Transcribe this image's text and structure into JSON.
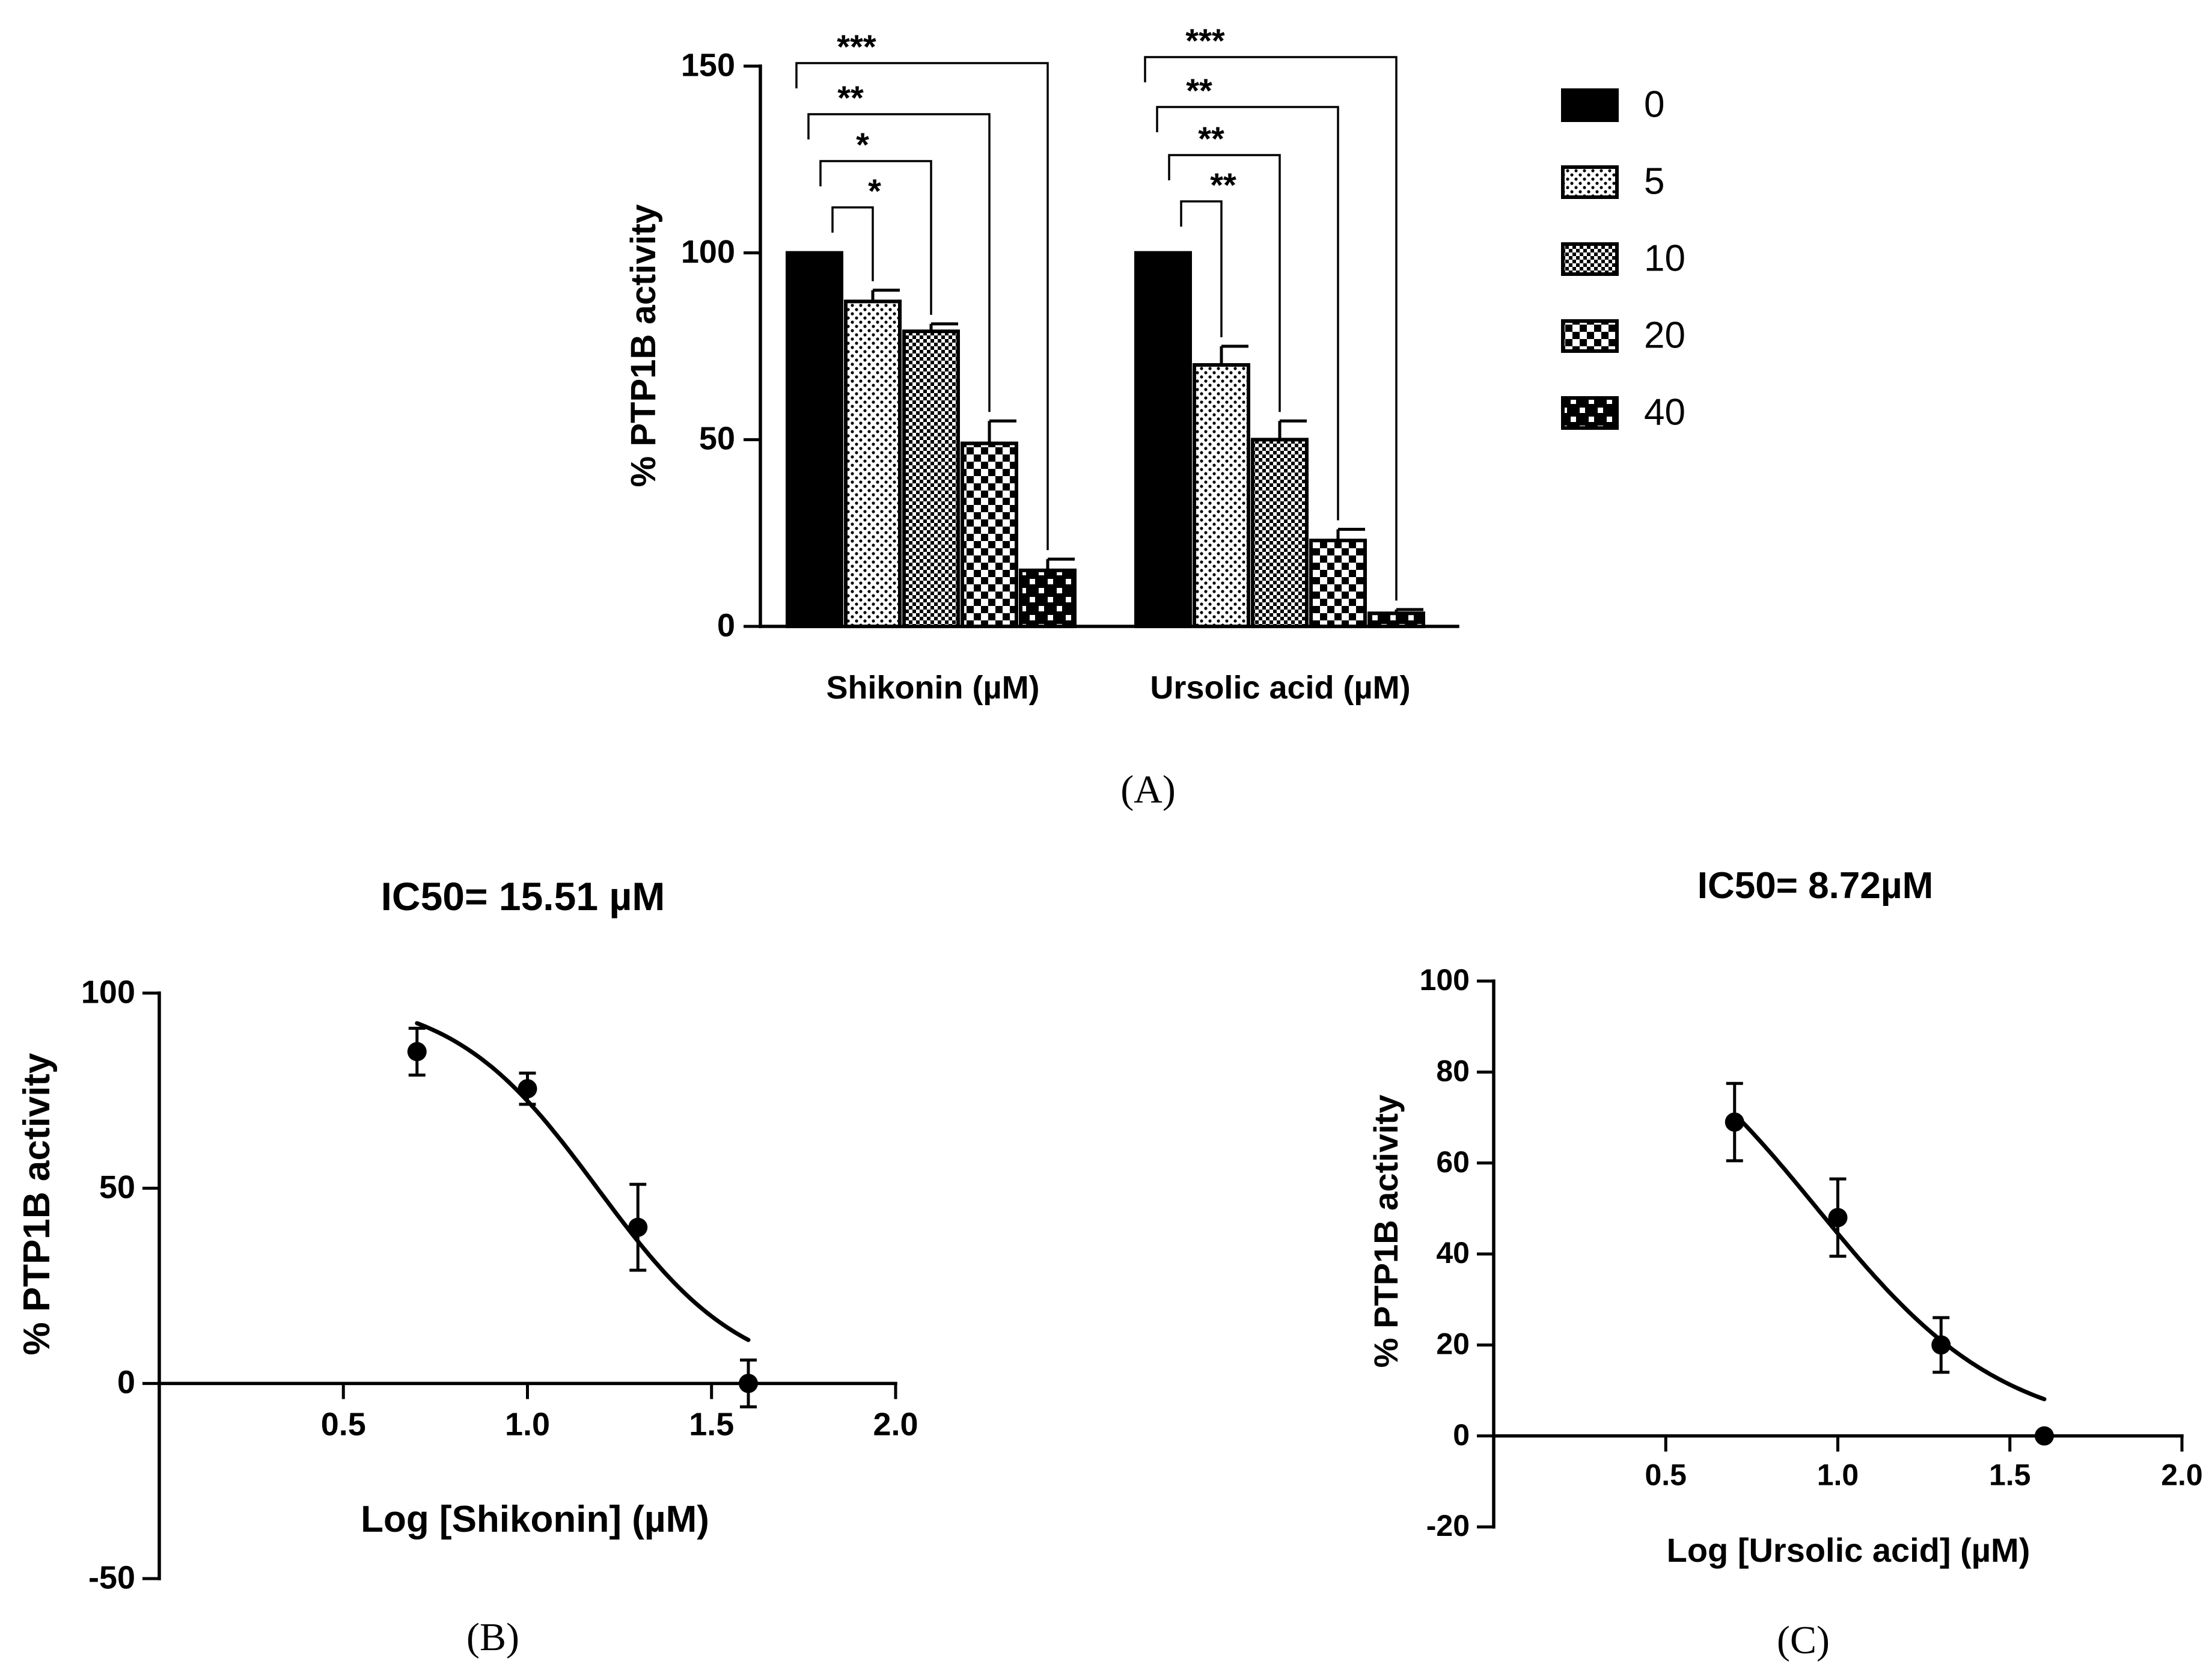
{
  "chart_data": [
    {
      "type": "bar",
      "panel": "A",
      "caption": "(A)",
      "ylabel": "% PTP1B activity",
      "ylim": [
        0,
        150
      ],
      "yticks": [
        0,
        50,
        100,
        150
      ],
      "groups": [
        "Shikonin (µM)",
        "Ursolic acid (µM)"
      ],
      "legend_title": "",
      "series": [
        {
          "name": "0",
          "values": [
            100,
            100
          ],
          "errors": [
            0,
            0
          ],
          "fill": "solid"
        },
        {
          "name": "5",
          "values": [
            87,
            70
          ],
          "errors": [
            3,
            5
          ],
          "fill": "dots"
        },
        {
          "name": "10",
          "values": [
            79,
            50
          ],
          "errors": [
            2,
            5
          ],
          "fill": "fine-check"
        },
        {
          "name": "20",
          "values": [
            49,
            23
          ],
          "errors": [
            6,
            3
          ],
          "fill": "check"
        },
        {
          "name": "40",
          "values": [
            15,
            3.5
          ],
          "errors": [
            3,
            1
          ],
          "fill": "coarse-check"
        }
      ],
      "significance": [
        [
          {
            "vs": "5",
            "label": "*"
          },
          {
            "vs": "10",
            "label": "*"
          },
          {
            "vs": "20",
            "label": "**"
          },
          {
            "vs": "40",
            "label": "***"
          }
        ],
        [
          {
            "vs": "5",
            "label": "**"
          },
          {
            "vs": "10",
            "label": "**"
          },
          {
            "vs": "20",
            "label": "**"
          },
          {
            "vs": "40",
            "label": "***"
          }
        ]
      ]
    },
    {
      "type": "scatter",
      "panel": "B",
      "caption": "(B)",
      "title": "IC50= 15.51 µM",
      "xlabel": "Log [Shikonin] (µM)",
      "ylabel": "% PTP1B activity",
      "xlim": [
        0,
        2.0
      ],
      "ylim": [
        -50,
        100
      ],
      "xticks": [
        0.5,
        1.0,
        1.5,
        2.0
      ],
      "yticks": [
        -50,
        0,
        50,
        100
      ],
      "points": [
        {
          "x": 0.7,
          "y": 85,
          "err": 6
        },
        {
          "x": 1.0,
          "y": 75.5,
          "err": 4
        },
        {
          "x": 1.3,
          "y": 40,
          "err": 11
        },
        {
          "x": 1.6,
          "y": 0,
          "err": 6
        }
      ],
      "fit": {
        "ic50_log": 1.19,
        "hill": 2.2,
        "top": 100,
        "bottom": 0,
        "x_from": 0.7,
        "x_to": 1.6
      }
    },
    {
      "type": "scatter",
      "panel": "C",
      "caption": "(C)",
      "title": "IC50= 8.72µM",
      "xlabel": "Log [Ursolic acid] (µM)",
      "ylabel": "% PTP1B activity",
      "xlim": [
        0,
        2.0
      ],
      "ylim": [
        -20,
        100
      ],
      "xticks": [
        0.5,
        1.0,
        1.5,
        2.0
      ],
      "yticks": [
        -20,
        0,
        20,
        40,
        60,
        80,
        100
      ],
      "points": [
        {
          "x": 0.7,
          "y": 69,
          "err": 8.5
        },
        {
          "x": 1.0,
          "y": 48,
          "err": 8.5
        },
        {
          "x": 1.3,
          "y": 20,
          "err": 6
        },
        {
          "x": 1.6,
          "y": 0,
          "err": 0
        }
      ],
      "fit": {
        "ic50_log": 0.94,
        "hill": 1.6,
        "top": 100,
        "bottom": 0,
        "x_from": 0.7,
        "x_to": 1.6
      }
    }
  ]
}
